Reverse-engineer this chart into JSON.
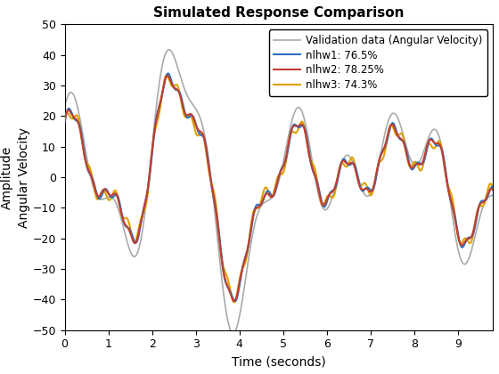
{
  "title": "Simulated Response Comparison",
  "xlabel": "Time (seconds)",
  "ylabel_outer": "Amplitude",
  "ylabel_inner": "Angular Velocity",
  "xlim": [
    0,
    9.8
  ],
  "ylim": [
    -50,
    50
  ],
  "yticks": [
    -50,
    -40,
    -30,
    -20,
    -10,
    0,
    10,
    20,
    30,
    40,
    50
  ],
  "xticks": [
    0,
    1,
    2,
    3,
    4,
    5,
    6,
    7,
    8,
    9
  ],
  "legend_labels": [
    "Validation data (Angular Velocity)",
    "nlhw1: 76.5%",
    "nlhw2: 78.25%",
    "nlhw3: 74.3%"
  ],
  "colors": {
    "validation": "#aaaaaa",
    "nlhw1": "#3070c0",
    "nlhw2": "#c04030",
    "nlhw3": "#e0a000"
  },
  "linewidths": {
    "validation": 1.2,
    "nlhw1": 1.5,
    "nlhw2": 1.5,
    "nlhw3": 1.5
  },
  "background_color": "#ffffff"
}
